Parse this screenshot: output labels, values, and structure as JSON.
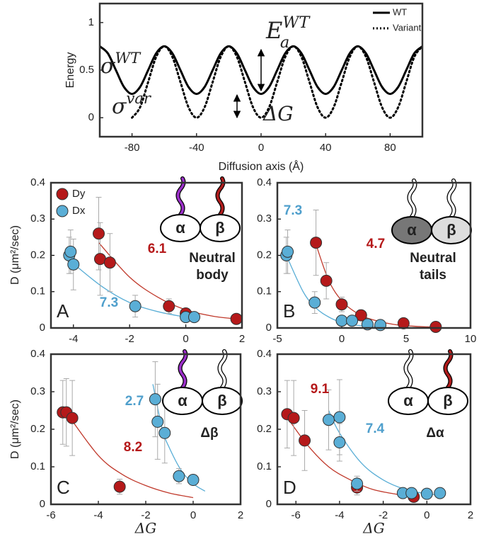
{
  "chart_data": [
    {
      "type": "line",
      "ylabel": "Energy",
      "xlabel": "Diffusion axis (Å)",
      "xlim": [
        -100,
        100
      ],
      "ylim": [
        -0.2,
        1.2
      ],
      "xticks": [
        -80,
        -40,
        0,
        40,
        80
      ],
      "yticks": [
        0,
        0.5,
        1
      ],
      "legend": "upper right",
      "series": [
        {
          "name": "WT",
          "color": "#000000",
          "style": "solid",
          "x": [
            -100,
            -95,
            -90,
            -85,
            -80,
            -75,
            -70,
            -65,
            -60,
            -55,
            -50,
            -45,
            -40,
            -35,
            -30,
            -25,
            -20,
            -15,
            -10,
            -5,
            0,
            5,
            10,
            15,
            20,
            25,
            30,
            35,
            40,
            45,
            50,
            55,
            60,
            65,
            70,
            75,
            80,
            85,
            90,
            95,
            100
          ],
          "values": [
            0.75,
            0.677,
            0.5,
            0.323,
            0.25,
            0.323,
            0.5,
            0.677,
            0.75,
            0.677,
            0.5,
            0.323,
            0.25,
            0.323,
            0.5,
            0.677,
            0.75,
            0.677,
            0.5,
            0.323,
            0.25,
            0.323,
            0.5,
            0.677,
            0.75,
            0.677,
            0.5,
            0.323,
            0.25,
            0.323,
            0.5,
            0.677,
            0.75,
            0.677,
            0.5,
            0.323,
            0.25,
            0.323,
            0.5,
            0.677,
            0.75
          ]
        },
        {
          "name": "Variant",
          "color": "#000000",
          "style": "dotted",
          "x": [
            -80,
            -75,
            -70,
            -65,
            -60,
            -55,
            -50,
            -45,
            -40,
            -35,
            -30,
            -25,
            -20,
            -15,
            -10,
            -5,
            0,
            5,
            10,
            15,
            20,
            25,
            30,
            35,
            40,
            45,
            50,
            55,
            60,
            65,
            70,
            75,
            80,
            85,
            90,
            95,
            100
          ],
          "values": [
            0,
            0.11,
            0.375,
            0.64,
            0.75,
            0.64,
            0.375,
            0.11,
            0,
            0.11,
            0.375,
            0.64,
            0.75,
            0.64,
            0.375,
            0.11,
            0,
            0.11,
            0.375,
            0.64,
            0.75,
            0.64,
            0.375,
            0.11,
            0,
            0.11,
            0.375,
            0.64,
            0.75,
            0.64,
            0.375,
            0.11,
            0,
            0.11,
            0.375,
            0.64,
            0.75
          ]
        }
      ],
      "annotations": [
        {
          "text": "E",
          "sub": "a",
          "sup": "WT",
          "color": "#000000"
        },
        {
          "text": "σ",
          "sup": "WT",
          "color": "#000000"
        },
        {
          "text": "σ",
          "sup": "var",
          "color": "#888888"
        },
        {
          "text": "ΔG",
          "color": "#000000"
        }
      ]
    },
    {
      "type": "scatter",
      "panel": "A",
      "ylabel": "D (μm²/sec)",
      "xlim": [
        -4.8,
        2
      ],
      "ylim": [
        0,
        0.4
      ],
      "xticks": [
        -4,
        -2,
        0,
        2
      ],
      "yticks": [
        0,
        0.1,
        0.2,
        0.3,
        0.4
      ],
      "legend": "upper left",
      "series": [
        {
          "name": "Dy",
          "color": "#b5191a",
          "x": [
            -3.1,
            -3.05,
            -2.7,
            -0.6,
            0,
            1.8
          ],
          "values": [
            0.26,
            0.19,
            0.18,
            0.06,
            0.04,
            0.025
          ],
          "errors": [
            0.1,
            0.1,
            0.08,
            0.02,
            0.01,
            0.005
          ]
        },
        {
          "name": "Dx",
          "color": "#5aaed6",
          "x": [
            -4.15,
            -4.1,
            -4.0,
            -1.8,
            0,
            0.3
          ],
          "values": [
            0.2,
            0.21,
            0.175,
            0.06,
            0.03,
            0.03
          ],
          "errors": [
            0.05,
            0.06,
            0.07,
            0.03,
            0.01,
            0.01
          ]
        }
      ],
      "fits": [
        {
          "color": "#c0392b",
          "x": [
            -3.1,
            -2,
            -1,
            0,
            1,
            1.8
          ],
          "values": [
            0.235,
            0.14,
            0.085,
            0.05,
            0.032,
            0.025
          ]
        },
        {
          "color": "#5aaed6",
          "x": [
            -4.2,
            -3,
            -2,
            -1,
            0,
            0.3
          ],
          "values": [
            0.19,
            0.115,
            0.07,
            0.045,
            0.03,
            0.027
          ]
        }
      ],
      "fit_labels": [
        {
          "text": "6.1",
          "color": "#b5191a"
        },
        {
          "text": "7.3",
          "color": "#4f9fcc"
        }
      ],
      "inset": {
        "alpha": "α",
        "beta": "β",
        "caption": [
          "Neutral",
          "body"
        ],
        "alpha_fill": "#ffffff",
        "beta_fill": "#ffffff",
        "alpha_tail": "#9b2fc9",
        "beta_tail": "#b01c1c"
      }
    },
    {
      "type": "scatter",
      "panel": "B",
      "xlim": [
        -5,
        10
      ],
      "ylim": [
        0,
        0.4
      ],
      "xticks": [
        -5,
        0,
        5,
        10
      ],
      "yticks": [
        0,
        0.1,
        0.2,
        0.3,
        0.4
      ],
      "series": [
        {
          "color": "#b5191a",
          "x": [
            -2,
            -1.2,
            0,
            1.5,
            4.8,
            7.3
          ],
          "values": [
            0.235,
            0.13,
            0.065,
            0.035,
            0.013,
            0.003
          ],
          "errors": [
            0.09,
            0.05,
            0.02,
            0.01,
            0.005,
            0.002
          ]
        },
        {
          "color": "#5aaed6",
          "x": [
            -4.3,
            -4.2,
            -2.1,
            0,
            0.8,
            2,
            3
          ],
          "values": [
            0.2,
            0.21,
            0.07,
            0.02,
            0.02,
            0.01,
            0.008
          ],
          "errors": [
            0.05,
            0.06,
            0.03,
            0.01,
            0.01,
            0.005,
            0.004
          ]
        }
      ],
      "fits": [
        {
          "color": "#c0392b",
          "x": [
            -2,
            -1,
            0,
            1,
            2,
            4,
            6,
            7.5
          ],
          "values": [
            0.23,
            0.13,
            0.075,
            0.045,
            0.027,
            0.01,
            0.004,
            0.002
          ]
        },
        {
          "color": "#5aaed6",
          "x": [
            -4.3,
            -3,
            -2,
            -1,
            0,
            1,
            3
          ],
          "values": [
            0.2,
            0.1,
            0.055,
            0.03,
            0.015,
            0.008,
            0.003
          ]
        }
      ],
      "fit_labels": [
        {
          "text": "7.3",
          "color": "#4f9fcc"
        },
        {
          "text": "4.7",
          "color": "#b5191a"
        }
      ],
      "inset": {
        "alpha": "α",
        "beta": "β",
        "caption": [
          "Neutral",
          "tails"
        ],
        "alpha_fill": "#777777",
        "beta_fill": "#dddddd",
        "alpha_tail": "#ffffff",
        "beta_tail": "#ffffff"
      }
    },
    {
      "type": "scatter",
      "panel": "C",
      "ylabel": "D (μm²/sec)",
      "xlabel": "ΔG",
      "xlim": [
        -6,
        2
      ],
      "ylim": [
        0,
        0.4
      ],
      "xticks": [
        -6,
        -4,
        -2,
        0,
        2
      ],
      "yticks": [
        0,
        0.1,
        0.2,
        0.3,
        0.4
      ],
      "series": [
        {
          "color": "#b5191a",
          "x": [
            -5.5,
            -5.35,
            -5.1,
            -3.1
          ],
          "values": [
            0.245,
            0.245,
            0.23,
            0.047
          ],
          "errors": [
            0.085,
            0.09,
            0.1,
            0.02
          ]
        },
        {
          "color": "#5aaed6",
          "x": [
            -1.6,
            -1.5,
            -1.2,
            -0.6,
            0
          ],
          "values": [
            0.28,
            0.22,
            0.19,
            0.075,
            0.065
          ],
          "errors": [
            0.1,
            0.1,
            0.08,
            0.02,
            0.01
          ]
        }
      ],
      "fits": [
        {
          "color": "#c0392b",
          "x": [
            -5.3,
            -4,
            -3,
            -2,
            -1,
            0
          ],
          "values": [
            0.24,
            0.13,
            0.08,
            0.05,
            0.03,
            0.018
          ]
        },
        {
          "color": "#5aaed6",
          "x": [
            -1.7,
            -1.3,
            -1,
            -0.5,
            0,
            0.5
          ],
          "values": [
            0.32,
            0.2,
            0.15,
            0.09,
            0.055,
            0.035
          ]
        }
      ],
      "fit_labels": [
        {
          "text": "2.7",
          "color": "#4f9fcc"
        },
        {
          "text": "8.2",
          "color": "#b5191a"
        }
      ],
      "inset": {
        "alpha": "α",
        "beta": "β",
        "caption": [
          "Δβ"
        ],
        "alpha_fill": "#ffffff",
        "beta_fill": "#ffffff",
        "alpha_tail": "#9b2fc9",
        "beta_tail": "#ffffff"
      }
    },
    {
      "type": "scatter",
      "panel": "D",
      "xlabel": "ΔG",
      "xlim": [
        -6.85,
        2
      ],
      "ylim": [
        0,
        0.4
      ],
      "xticks": [
        -6,
        -4,
        -2,
        0,
        2
      ],
      "yticks": [
        0,
        0.1,
        0.2,
        0.3,
        0.4
      ],
      "series": [
        {
          "color": "#b5191a",
          "x": [
            -6.4,
            -6.1,
            -5.6,
            -3.2,
            -0.6
          ],
          "values": [
            0.24,
            0.23,
            0.17,
            0.045,
            0.02
          ],
          "errors": [
            0.09,
            0.1,
            0.08,
            0.02,
            0.01
          ]
        },
        {
          "color": "#5aaed6",
          "x": [
            -4.5,
            -4,
            -4,
            -3.2,
            -1.1,
            -0.7,
            0,
            0.6
          ],
          "values": [
            0.225,
            0.232,
            0.165,
            0.055,
            0.03,
            0.03,
            0.028,
            0.03
          ],
          "errors": [
            0.08,
            0.1,
            0.05,
            0.02,
            0.01,
            0.01,
            0.01,
            0.005
          ]
        }
      ],
      "fits": [
        {
          "color": "#c0392b",
          "x": [
            -6.5,
            -5.5,
            -4.5,
            -3.5,
            -2.5,
            -1.5,
            -0.6
          ],
          "values": [
            0.24,
            0.16,
            0.1,
            0.065,
            0.04,
            0.028,
            0.02
          ]
        },
        {
          "color": "#5aaed6",
          "x": [
            -4.5,
            -4,
            -3,
            -2,
            -1,
            0,
            0.6
          ],
          "values": [
            0.25,
            0.19,
            0.11,
            0.065,
            0.04,
            0.028,
            0.025
          ]
        }
      ],
      "fit_labels": [
        {
          "text": "9.1",
          "color": "#b5191a"
        },
        {
          "text": "7.4",
          "color": "#4f9fcc"
        }
      ],
      "inset": {
        "alpha": "α",
        "beta": "β",
        "caption": [
          "Δα"
        ],
        "alpha_fill": "#ffffff",
        "beta_fill": "#ffffff",
        "alpha_tail": "#ffffff",
        "beta_tail": "#b01c1c"
      }
    }
  ]
}
